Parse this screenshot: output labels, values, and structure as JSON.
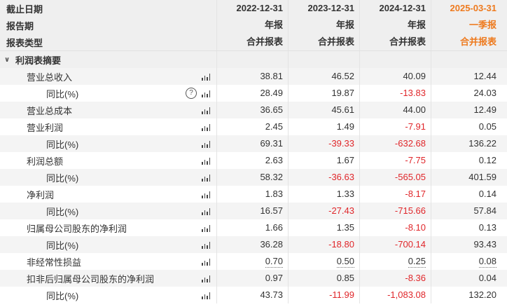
{
  "header": {
    "rows": [
      {
        "label": "截止日期",
        "values": [
          "2022-12-31",
          "2023-12-31",
          "2024-12-31",
          "2025-03-31"
        ]
      },
      {
        "label": "报告期",
        "values": [
          "年报",
          "年报",
          "年报",
          "一季报"
        ]
      },
      {
        "label": "报表类型",
        "values": [
          "合并报表",
          "合并报表",
          "合并报表",
          "合并报表"
        ]
      }
    ],
    "highlight_color": "#ee7a1e"
  },
  "section": {
    "label": "利润表摘要",
    "toggle_icon": "chevron-down-icon"
  },
  "rows": [
    {
      "label": "营业总收入",
      "values": [
        "38.81",
        "46.52",
        "40.09",
        "12.44"
      ]
    },
    {
      "label": "同比(%)",
      "values": [
        "28.49",
        "19.87",
        "-13.83",
        "24.03"
      ],
      "help": "?"
    },
    {
      "label": "营业总成本",
      "values": [
        "36.65",
        "45.61",
        "44.00",
        "12.49"
      ]
    },
    {
      "label": "营业利润",
      "values": [
        "2.45",
        "1.49",
        "-7.91",
        "0.05"
      ]
    },
    {
      "label": "同比(%)",
      "values": [
        "69.31",
        "-39.33",
        "-632.68",
        "136.22"
      ]
    },
    {
      "label": "利润总额",
      "values": [
        "2.63",
        "1.67",
        "-7.75",
        "0.12"
      ]
    },
    {
      "label": "同比(%)",
      "values": [
        "58.32",
        "-36.63",
        "-565.05",
        "401.59"
      ]
    },
    {
      "label": "净利润",
      "values": [
        "1.83",
        "1.33",
        "-8.17",
        "0.14"
      ]
    },
    {
      "label": "同比(%)",
      "values": [
        "16.57",
        "-27.43",
        "-715.66",
        "57.84"
      ]
    },
    {
      "label": "归属母公司股东的净利润",
      "values": [
        "1.66",
        "1.35",
        "-8.10",
        "0.13"
      ]
    },
    {
      "label": "同比(%)",
      "values": [
        "36.28",
        "-18.80",
        "-700.14",
        "93.43"
      ]
    },
    {
      "label": "非经常性损益",
      "values": [
        "0.70",
        "0.50",
        "0.25",
        "0.08"
      ]
    },
    {
      "label": "扣非后归属母公司股东的净利润",
      "values": [
        "0.97",
        "0.85",
        "-8.36",
        "0.04"
      ]
    },
    {
      "label": "同比(%)",
      "values": [
        "43.73",
        "-11.99",
        "-1,083.08",
        "132.20"
      ]
    }
  ],
  "colors": {
    "negative": "#e0262a",
    "alt_row": "#f4f4f4",
    "header_bg": "#efefef"
  }
}
